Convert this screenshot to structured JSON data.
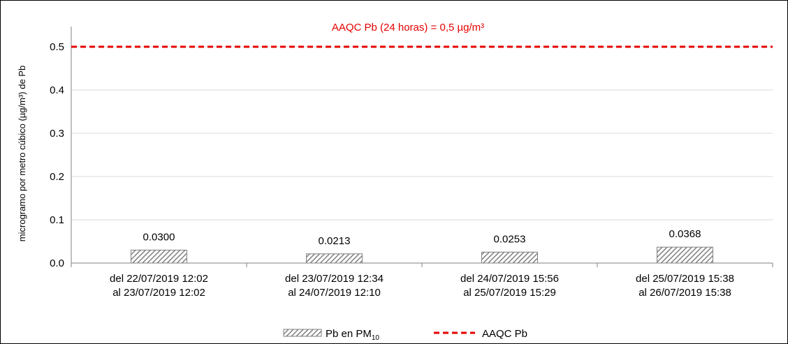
{
  "chart_data": {
    "type": "bar",
    "categories": [
      [
        "del 22/07/2019 12:02",
        "al 23/07/2019 12:02"
      ],
      [
        "del 23/07/2019 12:34",
        "al 24/07/2019 12:10"
      ],
      [
        "del 24/07/2019 15:56",
        "al 25/07/2019 15:29"
      ],
      [
        "del 25/07/2019 15:38",
        "al 26/07/2019 15:38"
      ]
    ],
    "series": [
      {
        "name": "Pb en PM10",
        "legend_main": "Pb  en PM",
        "legend_sub": "10",
        "values": [
          0.03,
          0.0213,
          0.0253,
          0.0368
        ],
        "value_labels": [
          "0.0300",
          "0.0213",
          "0.0253",
          "0.0368"
        ],
        "pattern": "diagonal-hatch",
        "color": "#808080"
      }
    ],
    "reference_line": {
      "name": "AAQC Pb",
      "value": 0.5,
      "label": "AAQC Pb  (24 horas) = 0,5 µg/m³",
      "color": "#e60000",
      "style": "dashed"
    },
    "ylabel": "microgramo por metro cúbico (µg/m³) de Pb",
    "xlabel": "",
    "title": "",
    "ylim": [
      0,
      0.5
    ],
    "yticks": [
      0.0,
      0.1,
      0.2,
      0.3,
      0.4,
      0.5
    ],
    "ytick_labels": [
      "0.0",
      "0.1",
      "0.2",
      "0.3",
      "0.4",
      "0.5"
    ],
    "grid": true,
    "legend_position": "bottom-center"
  }
}
